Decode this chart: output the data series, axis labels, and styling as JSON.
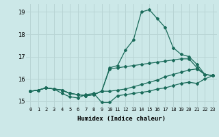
{
  "xlabel": "Humidex (Indice chaleur)",
  "ylabel": "",
  "bg_color": "#cce8e8",
  "line_color": "#1a6b5a",
  "grid_color": "#b8d4d4",
  "xlim": [
    -0.5,
    23.5
  ],
  "ylim": [
    14.75,
    19.35
  ],
  "xticks": [
    0,
    1,
    2,
    3,
    4,
    5,
    6,
    7,
    8,
    9,
    10,
    11,
    12,
    13,
    14,
    15,
    16,
    17,
    18,
    19,
    20,
    21,
    22,
    23
  ],
  "yticks": [
    15,
    16,
    17,
    18,
    19
  ],
  "curves": [
    {
      "x": [
        0,
        1,
        2,
        3,
        4,
        5,
        6,
        7,
        8,
        9,
        10,
        11,
        12,
        13,
        14,
        15,
        16,
        17,
        18,
        19,
        20,
        21,
        22,
        23
      ],
      "y": [
        15.45,
        15.5,
        15.6,
        15.55,
        15.5,
        15.35,
        15.3,
        15.25,
        15.3,
        15.45,
        16.5,
        16.6,
        17.3,
        17.75,
        19.0,
        19.1,
        18.7,
        18.3,
        17.4,
        17.1,
        17.0,
        16.65,
        16.2,
        16.15
      ]
    },
    {
      "x": [
        0,
        1,
        2,
        3,
        4,
        5,
        6,
        7,
        8,
        9,
        10,
        11,
        12,
        13,
        14,
        15,
        16,
        17,
        18,
        19,
        20,
        21,
        22,
        23
      ],
      "y": [
        15.45,
        15.5,
        15.6,
        15.55,
        15.5,
        15.35,
        15.3,
        15.25,
        15.3,
        15.45,
        16.45,
        16.5,
        16.55,
        16.6,
        16.65,
        16.7,
        16.75,
        16.8,
        16.85,
        16.9,
        16.9,
        16.5,
        16.2,
        16.15
      ]
    },
    {
      "x": [
        0,
        1,
        2,
        3,
        4,
        5,
        6,
        7,
        8,
        9,
        10,
        11,
        12,
        13,
        14,
        15,
        16,
        17,
        18,
        19,
        20,
        21,
        22,
        23
      ],
      "y": [
        15.45,
        15.5,
        15.6,
        15.55,
        15.5,
        15.35,
        15.3,
        15.25,
        15.3,
        15.45,
        15.45,
        15.5,
        15.55,
        15.65,
        15.75,
        15.85,
        15.95,
        16.1,
        16.2,
        16.3,
        16.4,
        16.45,
        16.2,
        16.15
      ]
    },
    {
      "x": [
        0,
        1,
        2,
        3,
        4,
        5,
        6,
        7,
        8,
        9,
        10,
        11,
        12,
        13,
        14,
        15,
        16,
        17,
        18,
        19,
        20,
        21,
        22,
        23
      ],
      "y": [
        15.45,
        15.5,
        15.6,
        15.55,
        15.35,
        15.2,
        15.15,
        15.3,
        15.35,
        14.95,
        14.95,
        15.25,
        15.3,
        15.35,
        15.4,
        15.45,
        15.55,
        15.6,
        15.7,
        15.8,
        15.85,
        15.8,
        16.0,
        16.15
      ]
    }
  ]
}
